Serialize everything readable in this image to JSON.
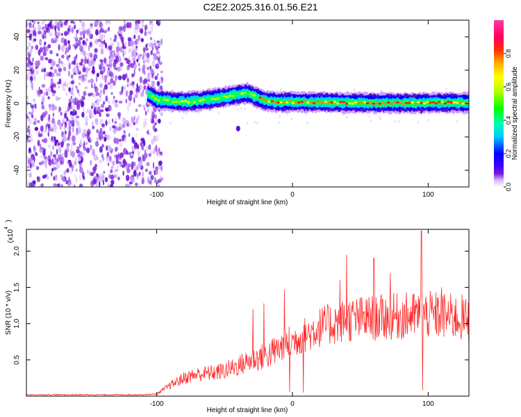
{
  "title": "C2E2.2025.316.01.56.E21",
  "chart_data": [
    {
      "type": "heatmap",
      "xlabel": "Height of straight line (km)",
      "ylabel": "Frequency (Hz)",
      "xlim": [
        -196,
        130
      ],
      "ylim": [
        -50,
        50
      ],
      "x_ticks": [
        -100,
        0,
        100
      ],
      "x_tick_labels": [
        "-100",
        "0",
        "100"
      ],
      "y_ticks": [
        -40,
        -20,
        0,
        20,
        40
      ],
      "y_tick_labels": [
        "-40",
        "-20",
        "0",
        "20",
        "40"
      ],
      "colorbar": {
        "label": "Normalized spectral amplitude",
        "range": [
          0,
          1
        ],
        "ticks": [
          0,
          0.2,
          0.4,
          0.6,
          0.8
        ],
        "tick_labels": [
          "0.0",
          "0.2",
          "0.4",
          "0.6",
          "0.8"
        ],
        "stops": [
          "#ffffff",
          "#d7b8ff",
          "#7c18d9",
          "#3a00ff",
          "#0000ff",
          "#00c8ff",
          "#00ffb0",
          "#00ff00",
          "#b4ff00",
          "#ffff00",
          "#ffb000",
          "#ff3000",
          "#ff0060",
          "#ff3aa0"
        ]
      },
      "noise_region_x": [
        -196,
        -100
      ],
      "signal_band": {
        "x_start": -107,
        "center_freq_points": [
          [
            -107,
            6
          ],
          [
            -100,
            2.5
          ],
          [
            -90,
            1.5
          ],
          [
            -80,
            1
          ],
          [
            -70,
            1.5
          ],
          [
            -60,
            2.5
          ],
          [
            -50,
            4
          ],
          [
            -40,
            5.5
          ],
          [
            -33,
            6
          ],
          [
            -25,
            3.5
          ],
          [
            -20,
            1.5
          ],
          [
            -10,
            1
          ],
          [
            0,
            1
          ],
          [
            20,
            0.8
          ],
          [
            40,
            0.5
          ],
          [
            60,
            0.4
          ],
          [
            80,
            0.3
          ],
          [
            100,
            0.5
          ],
          [
            115,
            0.5
          ],
          [
            130,
            0.5
          ]
        ],
        "half_width_hz": 4
      }
    },
    {
      "type": "line",
      "xlabel": "Height of straight line (km)",
      "ylabel": "SNR (10 * v/v)",
      "multiplier_label": "(x10",
      "multiplier_exp": "4",
      "xlim": [
        -196,
        130
      ],
      "ylim": [
        0,
        2.3
      ],
      "x_ticks": [
        -100,
        0,
        100
      ],
      "x_tick_labels": [
        "-100",
        "0",
        "100"
      ],
      "y_ticks": [
        0.5,
        1.0,
        1.5,
        2.0
      ],
      "y_tick_labels": [
        "0.5",
        "1.0",
        "1.5",
        "2.0"
      ],
      "color": "#ff2a2a",
      "trend": [
        [
          -196,
          0.02
        ],
        [
          -110,
          0.02
        ],
        [
          -100,
          0.03
        ],
        [
          -90,
          0.15
        ],
        [
          -80,
          0.25
        ],
        [
          -70,
          0.3
        ],
        [
          -60,
          0.32
        ],
        [
          -50,
          0.35
        ],
        [
          -40,
          0.42
        ],
        [
          -30,
          0.5
        ],
        [
          -20,
          0.55
        ],
        [
          -10,
          0.65
        ],
        [
          0,
          0.75
        ],
        [
          10,
          0.85
        ],
        [
          20,
          0.95
        ],
        [
          30,
          1.0
        ],
        [
          40,
          1.05
        ],
        [
          60,
          1.08
        ],
        [
          80,
          1.1
        ],
        [
          100,
          1.12
        ],
        [
          115,
          1.1
        ],
        [
          130,
          1.05
        ]
      ],
      "spikes": [
        [
          -29,
          1.2
        ],
        [
          -21,
          1.28
        ],
        [
          -6,
          1.47
        ],
        [
          -2,
          0.06
        ],
        [
          8,
          0.05
        ],
        [
          13,
          0.85
        ],
        [
          35,
          1.6
        ],
        [
          40,
          1.95
        ],
        [
          60,
          1.9
        ],
        [
          72,
          1.7
        ],
        [
          95,
          2.28
        ],
        [
          96,
          0.08
        ],
        [
          110,
          1.5
        ],
        [
          125,
          1.4
        ]
      ]
    }
  ]
}
